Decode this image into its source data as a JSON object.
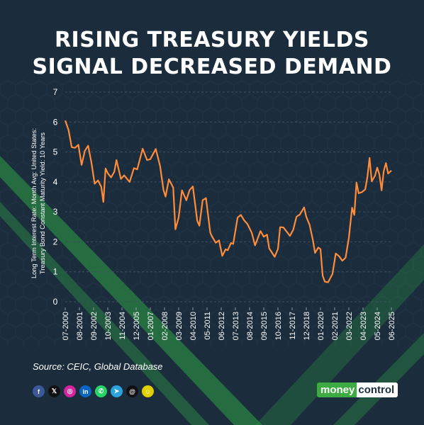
{
  "title_lines": [
    "RISING TREASURY YIELDS",
    "SIGNAL DECREASED DEMAND"
  ],
  "source": "Source: CEIC, Global Database",
  "brand": {
    "part1": "money",
    "part2": "control"
  },
  "colors": {
    "background": "#1b2d3d",
    "line": "#ff8c3a",
    "grid": "#3e5062",
    "accent_stripe": "#35c24a",
    "text": "#ffffff"
  },
  "socials": [
    {
      "name": "facebook-icon",
      "glyph": "f",
      "color": "#3b5998"
    },
    {
      "name": "x-icon",
      "glyph": "𝕏",
      "color": "#111111"
    },
    {
      "name": "instagram-icon",
      "glyph": "◎",
      "color": "#d6249f"
    },
    {
      "name": "linkedin-icon",
      "glyph": "in",
      "color": "#0a66c2"
    },
    {
      "name": "whatsapp-icon",
      "glyph": "✆",
      "color": "#25d366"
    },
    {
      "name": "telegram-icon",
      "glyph": "➤",
      "color": "#2aa3df"
    },
    {
      "name": "threads-icon",
      "glyph": "@",
      "color": "#111111"
    },
    {
      "name": "snapchat-icon",
      "glyph": "☺",
      "color": "#e0d000"
    }
  ],
  "chart_data": {
    "type": "line",
    "title": "RISING TREASURY YIELDS SIGNAL DECREASED DEMAND",
    "ylabel_lines": [
      "Long Term Interest Rate: Month Avg: United States:",
      "Treasury Bond Constant Maturity Yield: 10 Years"
    ],
    "xlabel": "",
    "ylim": [
      0,
      7
    ],
    "yticks": [
      0,
      1,
      2,
      3,
      4,
      5,
      6,
      7
    ],
    "x_range": [
      "07-2000",
      "06-2025"
    ],
    "xticks": [
      "07-2000",
      "08-2001",
      "09-2002",
      "10-2003",
      "11-2004",
      "12-2005",
      "01-2007",
      "02-2008",
      "03-2009",
      "04-2010",
      "05-2011",
      "06-2012",
      "07-2013",
      "08-2014",
      "09-2015",
      "10-2016",
      "11-2017",
      "12-2018",
      "01-2020",
      "02-2021",
      "03-2022",
      "04-2023",
      "05-2024",
      "06-2025"
    ],
    "grid": true,
    "legend": "none",
    "series": [
      {
        "x": [
          "07-2000",
          "10-2000",
          "01-2001",
          "04-2001",
          "07-2001",
          "10-2001",
          "01-2002",
          "04-2002",
          "07-2002",
          "10-2002",
          "01-2003",
          "04-2003",
          "06-2003",
          "08-2003",
          "10-2003",
          "01-2004",
          "04-2004",
          "06-2004",
          "10-2004",
          "01-2005",
          "06-2005",
          "10-2005",
          "01-2006",
          "06-2006",
          "10-2006",
          "01-2007",
          "06-2007",
          "10-2007",
          "01-2008",
          "03-2008",
          "06-2008",
          "10-2008",
          "12-2008",
          "03-2009",
          "06-2009",
          "10-2009",
          "01-2010",
          "04-2010",
          "08-2010",
          "10-2010",
          "01-2011",
          "04-2011",
          "08-2011",
          "10-2011",
          "01-2012",
          "04-2012",
          "07-2012",
          "10-2012",
          "12-2012",
          "03-2013",
          "05-2013",
          "09-2013",
          "12-2013",
          "03-2014",
          "06-2014",
          "10-2014",
          "01-2015",
          "06-2015",
          "09-2015",
          "12-2015",
          "02-2016",
          "07-2016",
          "10-2016",
          "12-2016",
          "03-2017",
          "09-2017",
          "12-2017",
          "03-2018",
          "06-2018",
          "10-2018",
          "12-2018",
          "03-2019",
          "06-2019",
          "08-2019",
          "11-2019",
          "01-2020",
          "03-2020",
          "05-2020",
          "08-2020",
          "10-2020",
          "12-2020",
          "03-2021",
          "06-2021",
          "09-2021",
          "12-2021",
          "03-2022",
          "06-2022",
          "08-2022",
          "10-2022",
          "12-2022",
          "03-2023",
          "06-2023",
          "08-2023",
          "10-2023",
          "12-2023",
          "03-2024",
          "05-2024",
          "07-2024",
          "09-2024",
          "11-2024",
          "01-2025",
          "03-2025",
          "06-2025"
        ],
        "values": [
          6.05,
          5.74,
          5.16,
          5.14,
          5.24,
          4.57,
          5.04,
          5.21,
          4.65,
          3.94,
          4.05,
          3.84,
          3.33,
          4.45,
          4.29,
          4.15,
          4.34,
          4.73,
          4.1,
          4.22,
          4.0,
          4.46,
          4.42,
          5.11,
          4.73,
          4.76,
          5.1,
          4.53,
          3.74,
          3.51,
          4.09,
          3.81,
          2.42,
          2.82,
          3.72,
          3.39,
          3.73,
          3.85,
          2.7,
          2.54,
          3.39,
          3.46,
          2.3,
          2.15,
          1.97,
          2.05,
          1.53,
          1.75,
          1.72,
          1.96,
          1.93,
          2.81,
          2.9,
          2.72,
          2.6,
          2.3,
          1.88,
          2.36,
          2.17,
          2.24,
          1.78,
          1.5,
          1.76,
          2.49,
          2.48,
          2.2,
          2.4,
          2.84,
          2.91,
          3.15,
          2.83,
          2.57,
          2.07,
          1.63,
          1.81,
          1.76,
          0.87,
          0.67,
          0.65,
          0.79,
          0.93,
          1.61,
          1.52,
          1.37,
          1.47,
          2.13,
          3.14,
          2.9,
          3.98,
          3.62,
          3.66,
          3.75,
          4.17,
          4.8,
          4.02,
          4.21,
          4.48,
          4.25,
          3.72,
          4.36,
          4.63,
          4.28,
          4.38
        ]
      }
    ]
  }
}
